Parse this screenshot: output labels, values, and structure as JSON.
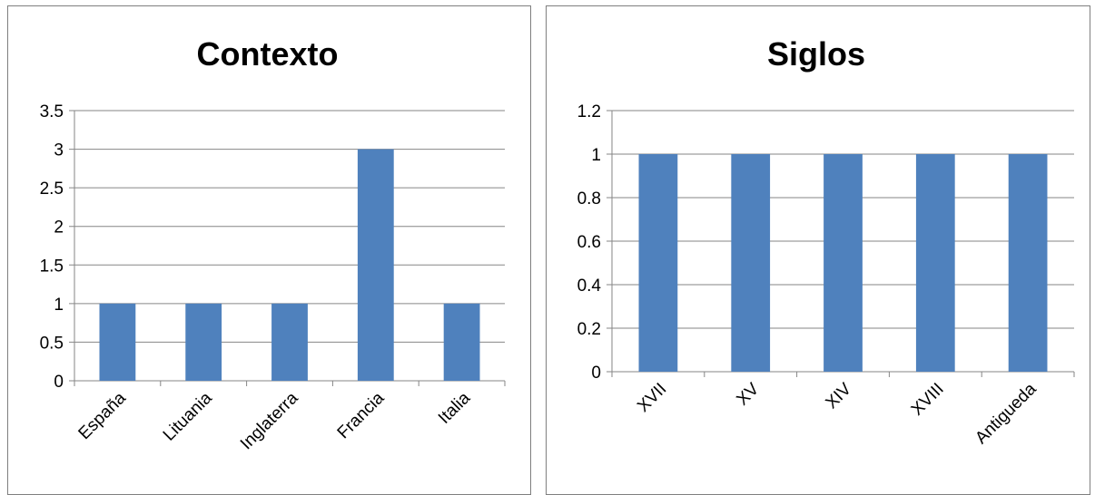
{
  "chart_data": [
    {
      "type": "bar",
      "title": "Contexto",
      "categories": [
        "España",
        "Lituania",
        "Inglaterra",
        "Francia",
        "Italia"
      ],
      "values": [
        1,
        1,
        1,
        3,
        1
      ],
      "ylim": [
        0,
        3.5
      ],
      "yticks": [
        "0",
        "0.5",
        "1",
        "1.5",
        "2",
        "2.5",
        "3",
        "3.5"
      ],
      "xlabel": "",
      "ylabel": "",
      "grid": true,
      "legend": "none",
      "bar_color": "#4f81bd"
    },
    {
      "type": "bar",
      "title": "Siglos",
      "categories": [
        "XVII",
        "XV",
        "XIV",
        "XVIII",
        "Antigueda"
      ],
      "values": [
        1,
        1,
        1,
        1,
        1
      ],
      "ylim": [
        0,
        1.2
      ],
      "yticks": [
        "0",
        "0.2",
        "0.4",
        "0.6",
        "0.8",
        "1",
        "1.2"
      ],
      "xlabel": "",
      "ylabel": "",
      "grid": true,
      "legend": "none",
      "bar_color": "#4f81bd"
    }
  ]
}
